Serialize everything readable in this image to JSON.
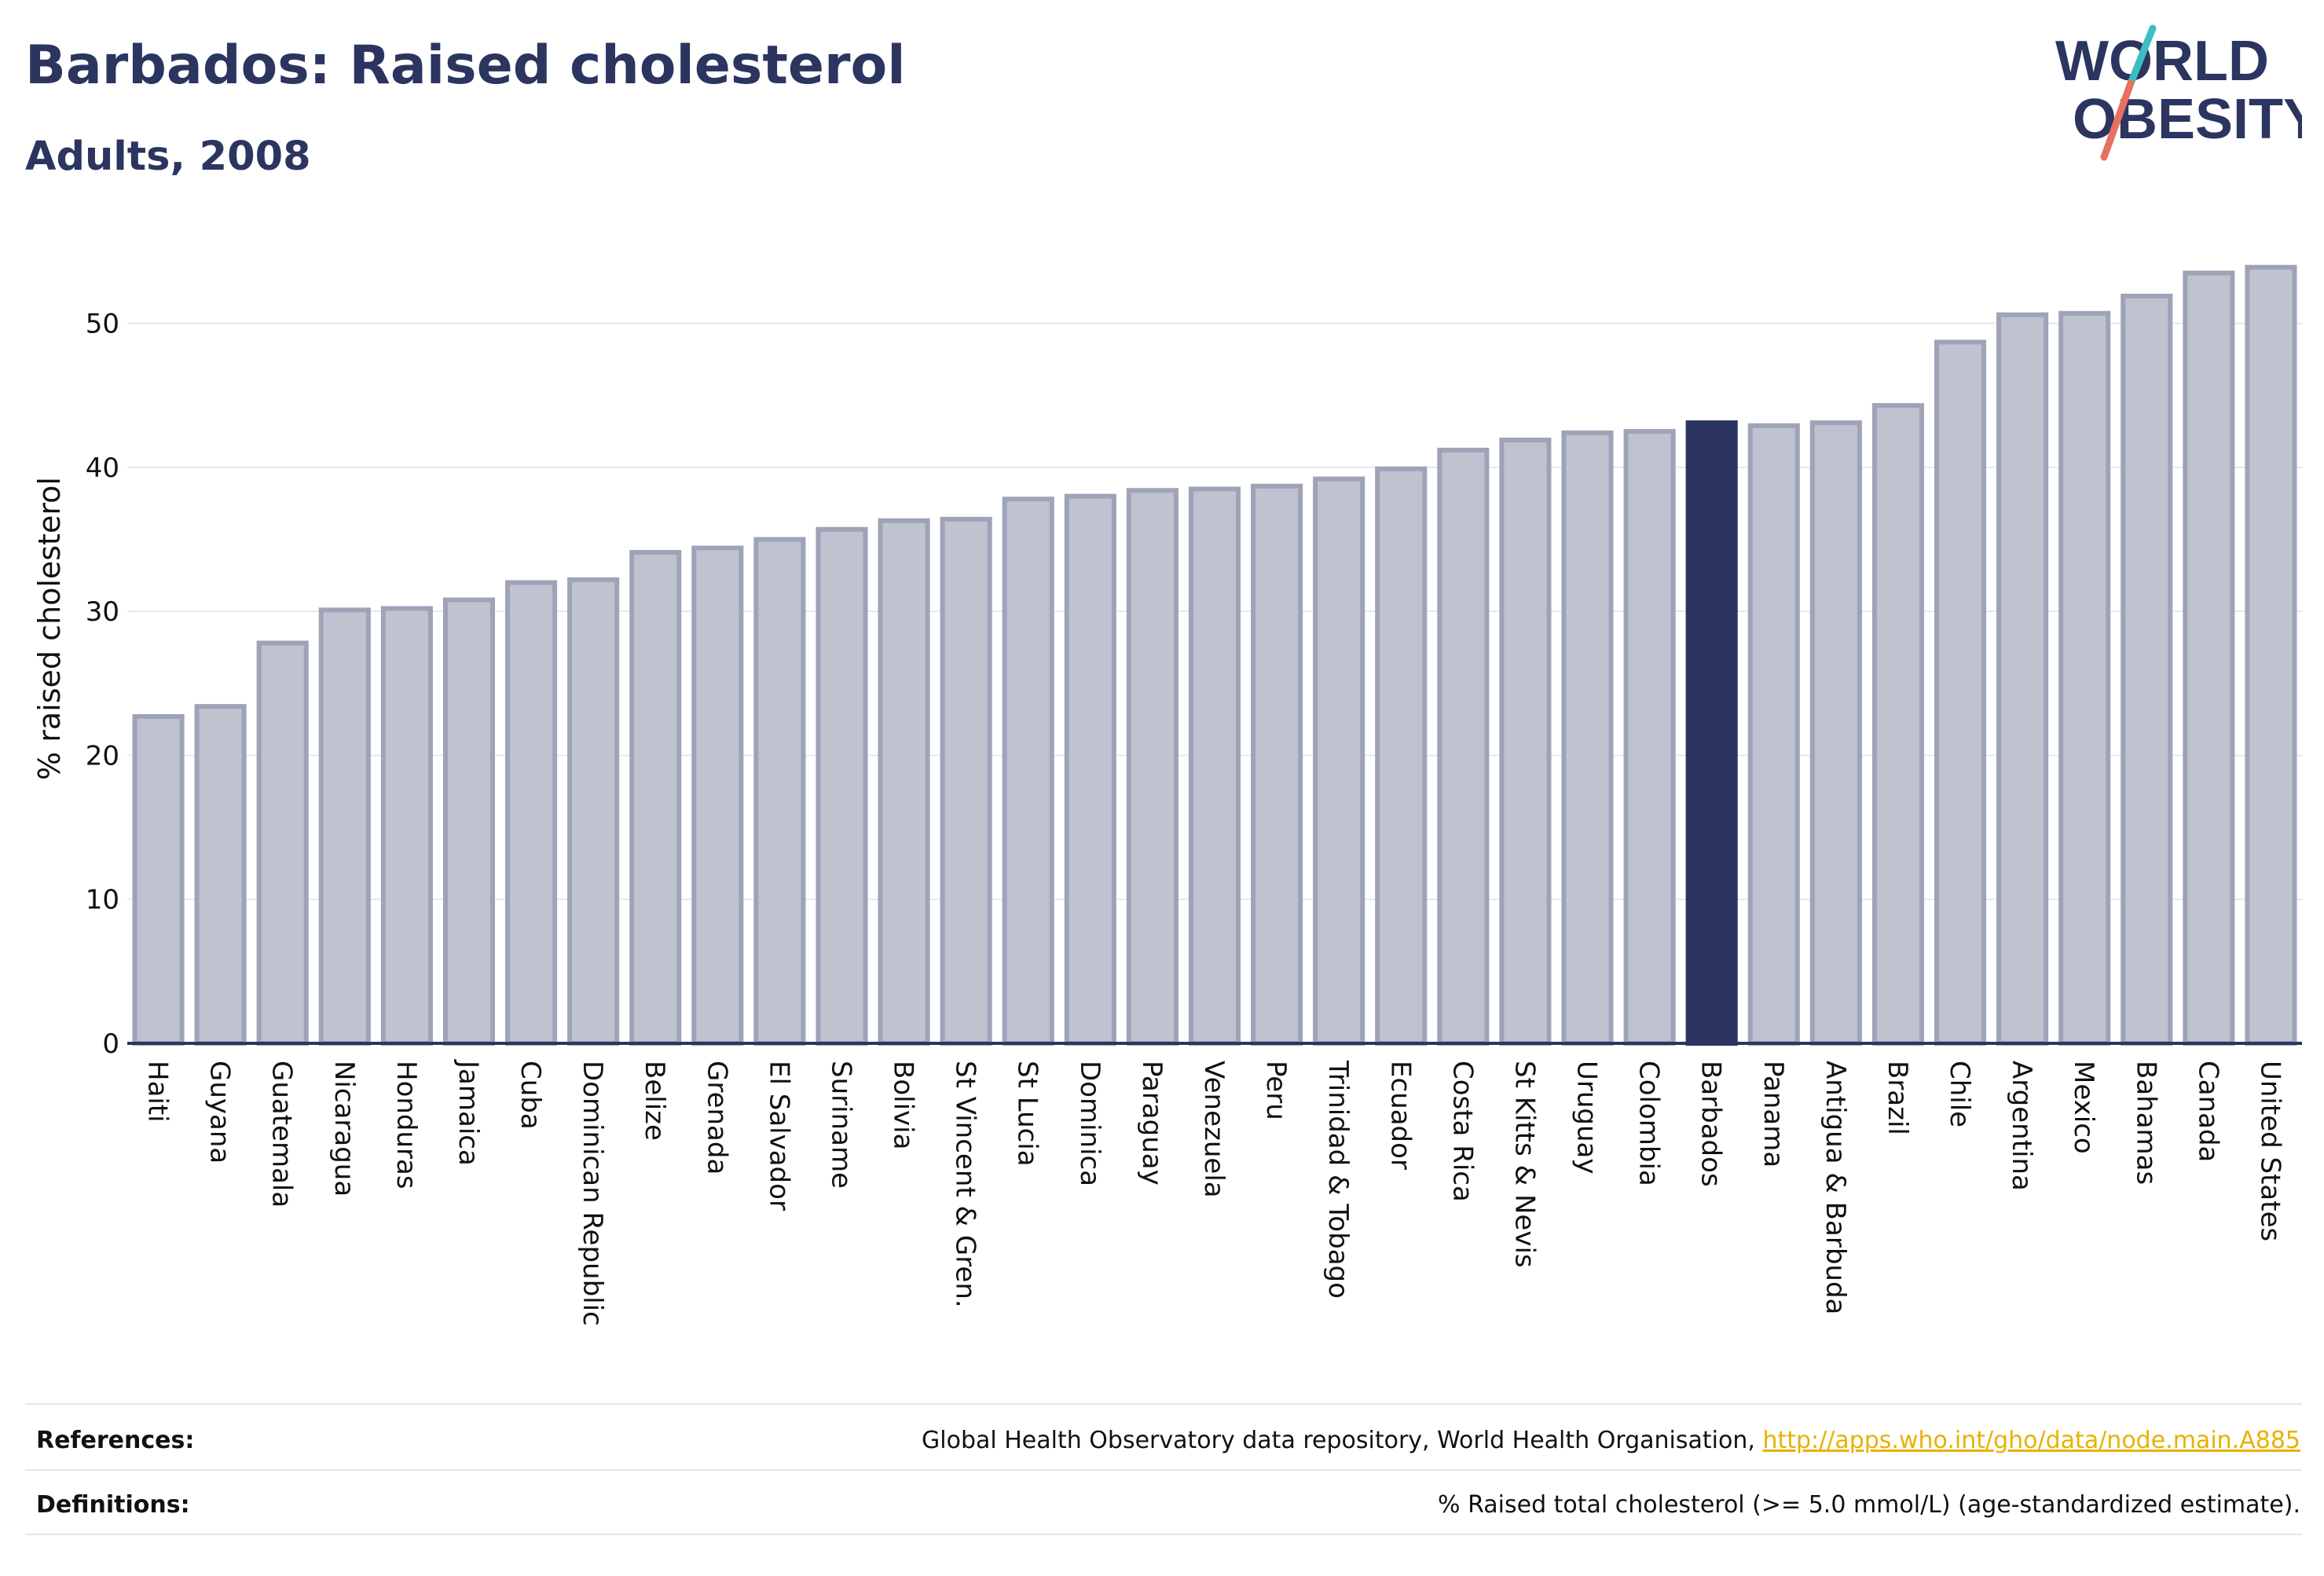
{
  "header": {
    "title": "Barbados: Raised cholesterol",
    "subtitle": "Adults, 2008"
  },
  "logo": {
    "line1": "WORLD",
    "line2": "OBESITY",
    "text_color": "#2b3560",
    "slash_color_top": "#3cbfc0",
    "slash_color_bottom": "#e8705f"
  },
  "chart_data": {
    "type": "bar",
    "title": "",
    "xlabel": "",
    "ylabel": "% raised cholesterol",
    "ylim": [
      0,
      55
    ],
    "yticks": [
      0,
      10,
      20,
      30,
      40,
      50
    ],
    "grid": true,
    "highlight": "Barbados",
    "colors": {
      "bar": "#bfc2cf",
      "bar_edge": "#9ea3b8",
      "highlight": "#2b3560",
      "grid": "#e6e8ee",
      "axis": "#2b3560"
    },
    "categories": [
      "Haiti",
      "Guyana",
      "Guatemala",
      "Nicaragua",
      "Honduras",
      "Jamaica",
      "Cuba",
      "Dominican Republic",
      "Belize",
      "Grenada",
      "El Salvador",
      "Suriname",
      "Bolivia",
      "St Vincent & Gren.",
      "St Lucia",
      "Dominica",
      "Paraguay",
      "Venezuela",
      "Peru",
      "Trinidad & Tobago",
      "Ecuador",
      "Costa Rica",
      "St Kitts & Nevis",
      "Uruguay",
      "Colombia",
      "Barbados",
      "Panama",
      "Antigua & Barbuda",
      "Brazil",
      "Chile",
      "Argentina",
      "Mexico",
      "Bahamas",
      "Canada",
      "United States"
    ],
    "values": [
      22.7,
      23.4,
      27.8,
      30.1,
      30.2,
      30.8,
      32.0,
      32.2,
      34.1,
      34.4,
      35.0,
      35.7,
      36.3,
      36.4,
      37.8,
      38.0,
      38.4,
      38.5,
      38.7,
      39.2,
      39.9,
      41.2,
      41.9,
      42.4,
      42.5,
      43.1,
      42.9,
      43.1,
      44.3,
      48.7,
      50.6,
      50.7,
      51.9,
      53.5,
      53.9
    ]
  },
  "footer": {
    "references_label": "References:",
    "references_text": "Global Health Observatory data repository, World Health Organisation, ",
    "references_link": "http://apps.who.int/gho/data/node.main.A885",
    "definitions_label": "Definitions:",
    "definitions_text": "% Raised total cholesterol (>= 5.0 mmol/L) (age-standardized estimate)."
  }
}
